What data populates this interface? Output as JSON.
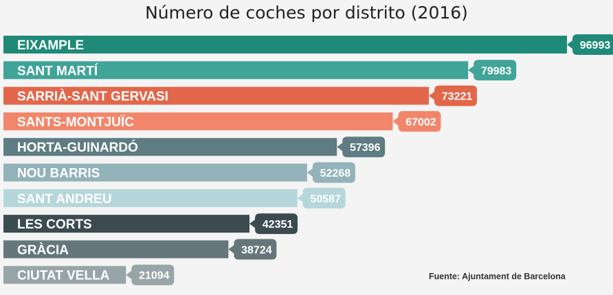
{
  "chart_data": {
    "type": "bar",
    "orientation": "horizontal",
    "title": "Número de coches por distrito (2016)",
    "categories": [
      "EIXAMPLE",
      "SANT MARTÍ",
      "SARRIÀ-SANT GERVASI",
      "SANTS-MONTJUÏC",
      "HORTA-GUINARDÓ",
      "NOU BARRIS",
      "SANT ANDREU",
      "LES CORTS",
      "GRÀCIA",
      "CIUTAT VELLA"
    ],
    "values": [
      96993,
      79983,
      73221,
      67002,
      57396,
      52268,
      50587,
      42351,
      38724,
      21094
    ],
    "colors": [
      "#1f8a78",
      "#40a498",
      "#e2674a",
      "#f2866a",
      "#5e7c82",
      "#93b2b9",
      "#b5d6db",
      "#3b4b50",
      "#65777b",
      "#98a5a8"
    ],
    "xlim": [
      0,
      96993
    ],
    "grid": false,
    "legend": "none",
    "source": "Fuente: Ajuntament de Barcelona"
  }
}
